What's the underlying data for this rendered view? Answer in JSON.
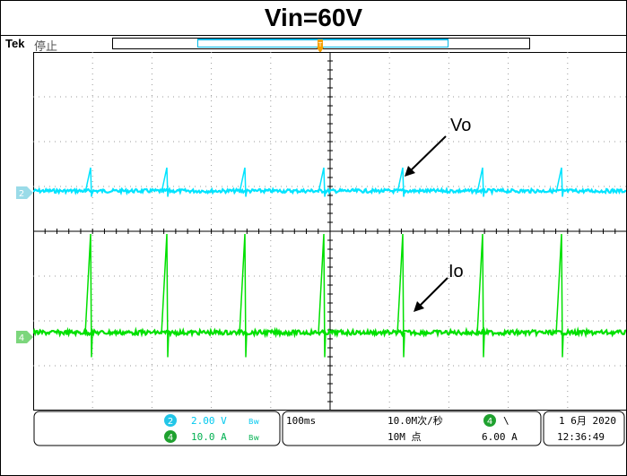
{
  "title": "Vin=60V",
  "header": {
    "brand": "Tek",
    "status": "停止"
  },
  "annotations": {
    "vo_label": "Vo",
    "io_label": "Io"
  },
  "channels": {
    "ch2": {
      "number": "2",
      "scale": "2.00 V",
      "bw": "Bw",
      "color": "#00e4ff"
    },
    "ch4": {
      "number": "4",
      "scale": "10.0 A",
      "bw": "Bw",
      "color": "#00e000"
    }
  },
  "timebase": {
    "time_div": "100ms",
    "sample_rate": "10.0M次/秒",
    "record_length": "10M 点"
  },
  "trigger": {
    "source": "4",
    "slope": "\\",
    "level": "6.00 A"
  },
  "datetime": {
    "date": "1 6月 2020",
    "time": "12:36:49"
  },
  "marker_colors": {
    "trigger": "#f5a000",
    "ch2_marker": "#9adbe8",
    "ch4_marker": "#7cd67c"
  }
}
